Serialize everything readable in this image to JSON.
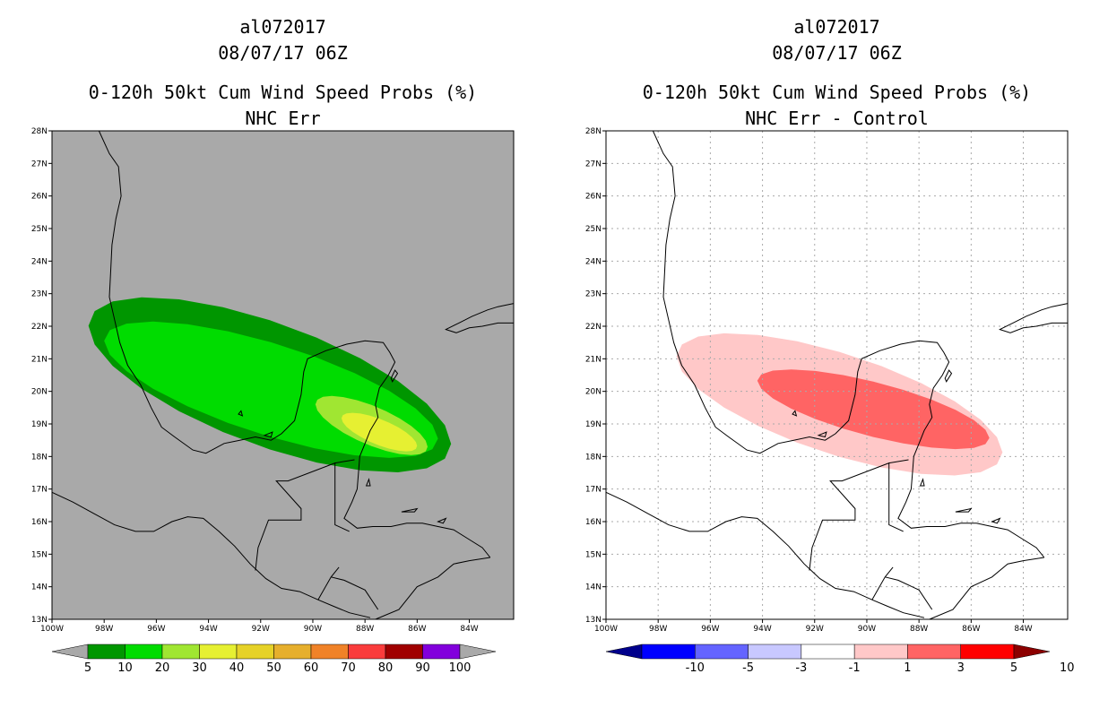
{
  "left_panel": {
    "storm_id": "al072017",
    "datetime": "08/07/17 06Z",
    "product": "0-120h 50kt Cum Wind Speed Probs (%)",
    "subtitle": "NHC Err",
    "background_color": "#a9a9a9"
  },
  "right_panel": {
    "storm_id": "al072017",
    "datetime": "08/07/17 06Z",
    "product": "0-120h 50kt Cum Wind Speed Probs (%)",
    "subtitle": "NHC Err - Control",
    "background_color": "#ffffff"
  },
  "axes": {
    "lon_range": [
      -100,
      -82.3
    ],
    "lat_range": [
      13,
      28
    ],
    "lon_ticks": [
      "100W",
      "98W",
      "96W",
      "94W",
      "92W",
      "90W",
      "88W",
      "86W",
      "84W"
    ],
    "lat_ticks": [
      "13N",
      "14N",
      "15N",
      "16N",
      "17N",
      "18N",
      "19N",
      "20N",
      "21N",
      "22N",
      "23N",
      "24N",
      "25N",
      "26N",
      "27N",
      "28N"
    ]
  },
  "left_colorbar": {
    "labels": [
      "5",
      "10",
      "20",
      "30",
      "40",
      "50",
      "60",
      "70",
      "80",
      "90",
      "100"
    ],
    "colors": [
      "#009600",
      "#00dc00",
      "#a0e632",
      "#e6f032",
      "#e6d228",
      "#e6af2d",
      "#f08228",
      "#fa3c3c",
      "#a00000",
      "#8200dc"
    ],
    "end_low_color": "#a9a9a9",
    "end_high_color": "#a9a9a9"
  },
  "right_colorbar": {
    "labels": [
      "-10",
      "-5",
      "-3",
      "-1",
      "1",
      "3",
      "5",
      "10"
    ],
    "colors": [
      "#0000ff",
      "#6464ff",
      "#c8c8ff",
      "#ffffff",
      "#ffc8c8",
      "#ff6464",
      "#ff0000"
    ],
    "end_low_color": "#00008c",
    "end_high_color": "#8c0000"
  },
  "chart_data": [
    {
      "type": "heatmap",
      "title": "0-120h 50kt Cum Wind Speed Probs (%) NHC Err",
      "units": "%",
      "regions": [
        {
          "level": "5-10",
          "color": "#009600",
          "lon_span": [
            -98.6,
            -84.7
          ],
          "lat_span": [
            17.0,
            23.4
          ]
        },
        {
          "level": "10-20",
          "color": "#00dc00",
          "lon_span": [
            -98.0,
            -85.2
          ],
          "lat_span": [
            17.4,
            22.7
          ]
        },
        {
          "level": "20-30",
          "color": "#a0e632",
          "lon_span": [
            -89.9,
            -85.6
          ],
          "lat_span": [
            17.8,
            20.1
          ]
        },
        {
          "level": "30-40",
          "color": "#e6f032",
          "lon_span": [
            -88.9,
            -86.0
          ],
          "lat_span": [
            18.0,
            19.5
          ]
        }
      ]
    },
    {
      "type": "heatmap",
      "title": "0-120h 50kt Cum Wind Speed Probs (%) NHC Err - Control",
      "units": "%",
      "regions": [
        {
          "level": "1-3",
          "color": "#ffc8c8",
          "lon_span": [
            -97.3,
            -84.8
          ],
          "lat_span": [
            17.0,
            22.2
          ]
        },
        {
          "level": "3-5",
          "color": "#ff6464",
          "lon_span": [
            -94.2,
            -85.3
          ],
          "lat_span": [
            17.9,
            21.0
          ]
        }
      ]
    }
  ]
}
